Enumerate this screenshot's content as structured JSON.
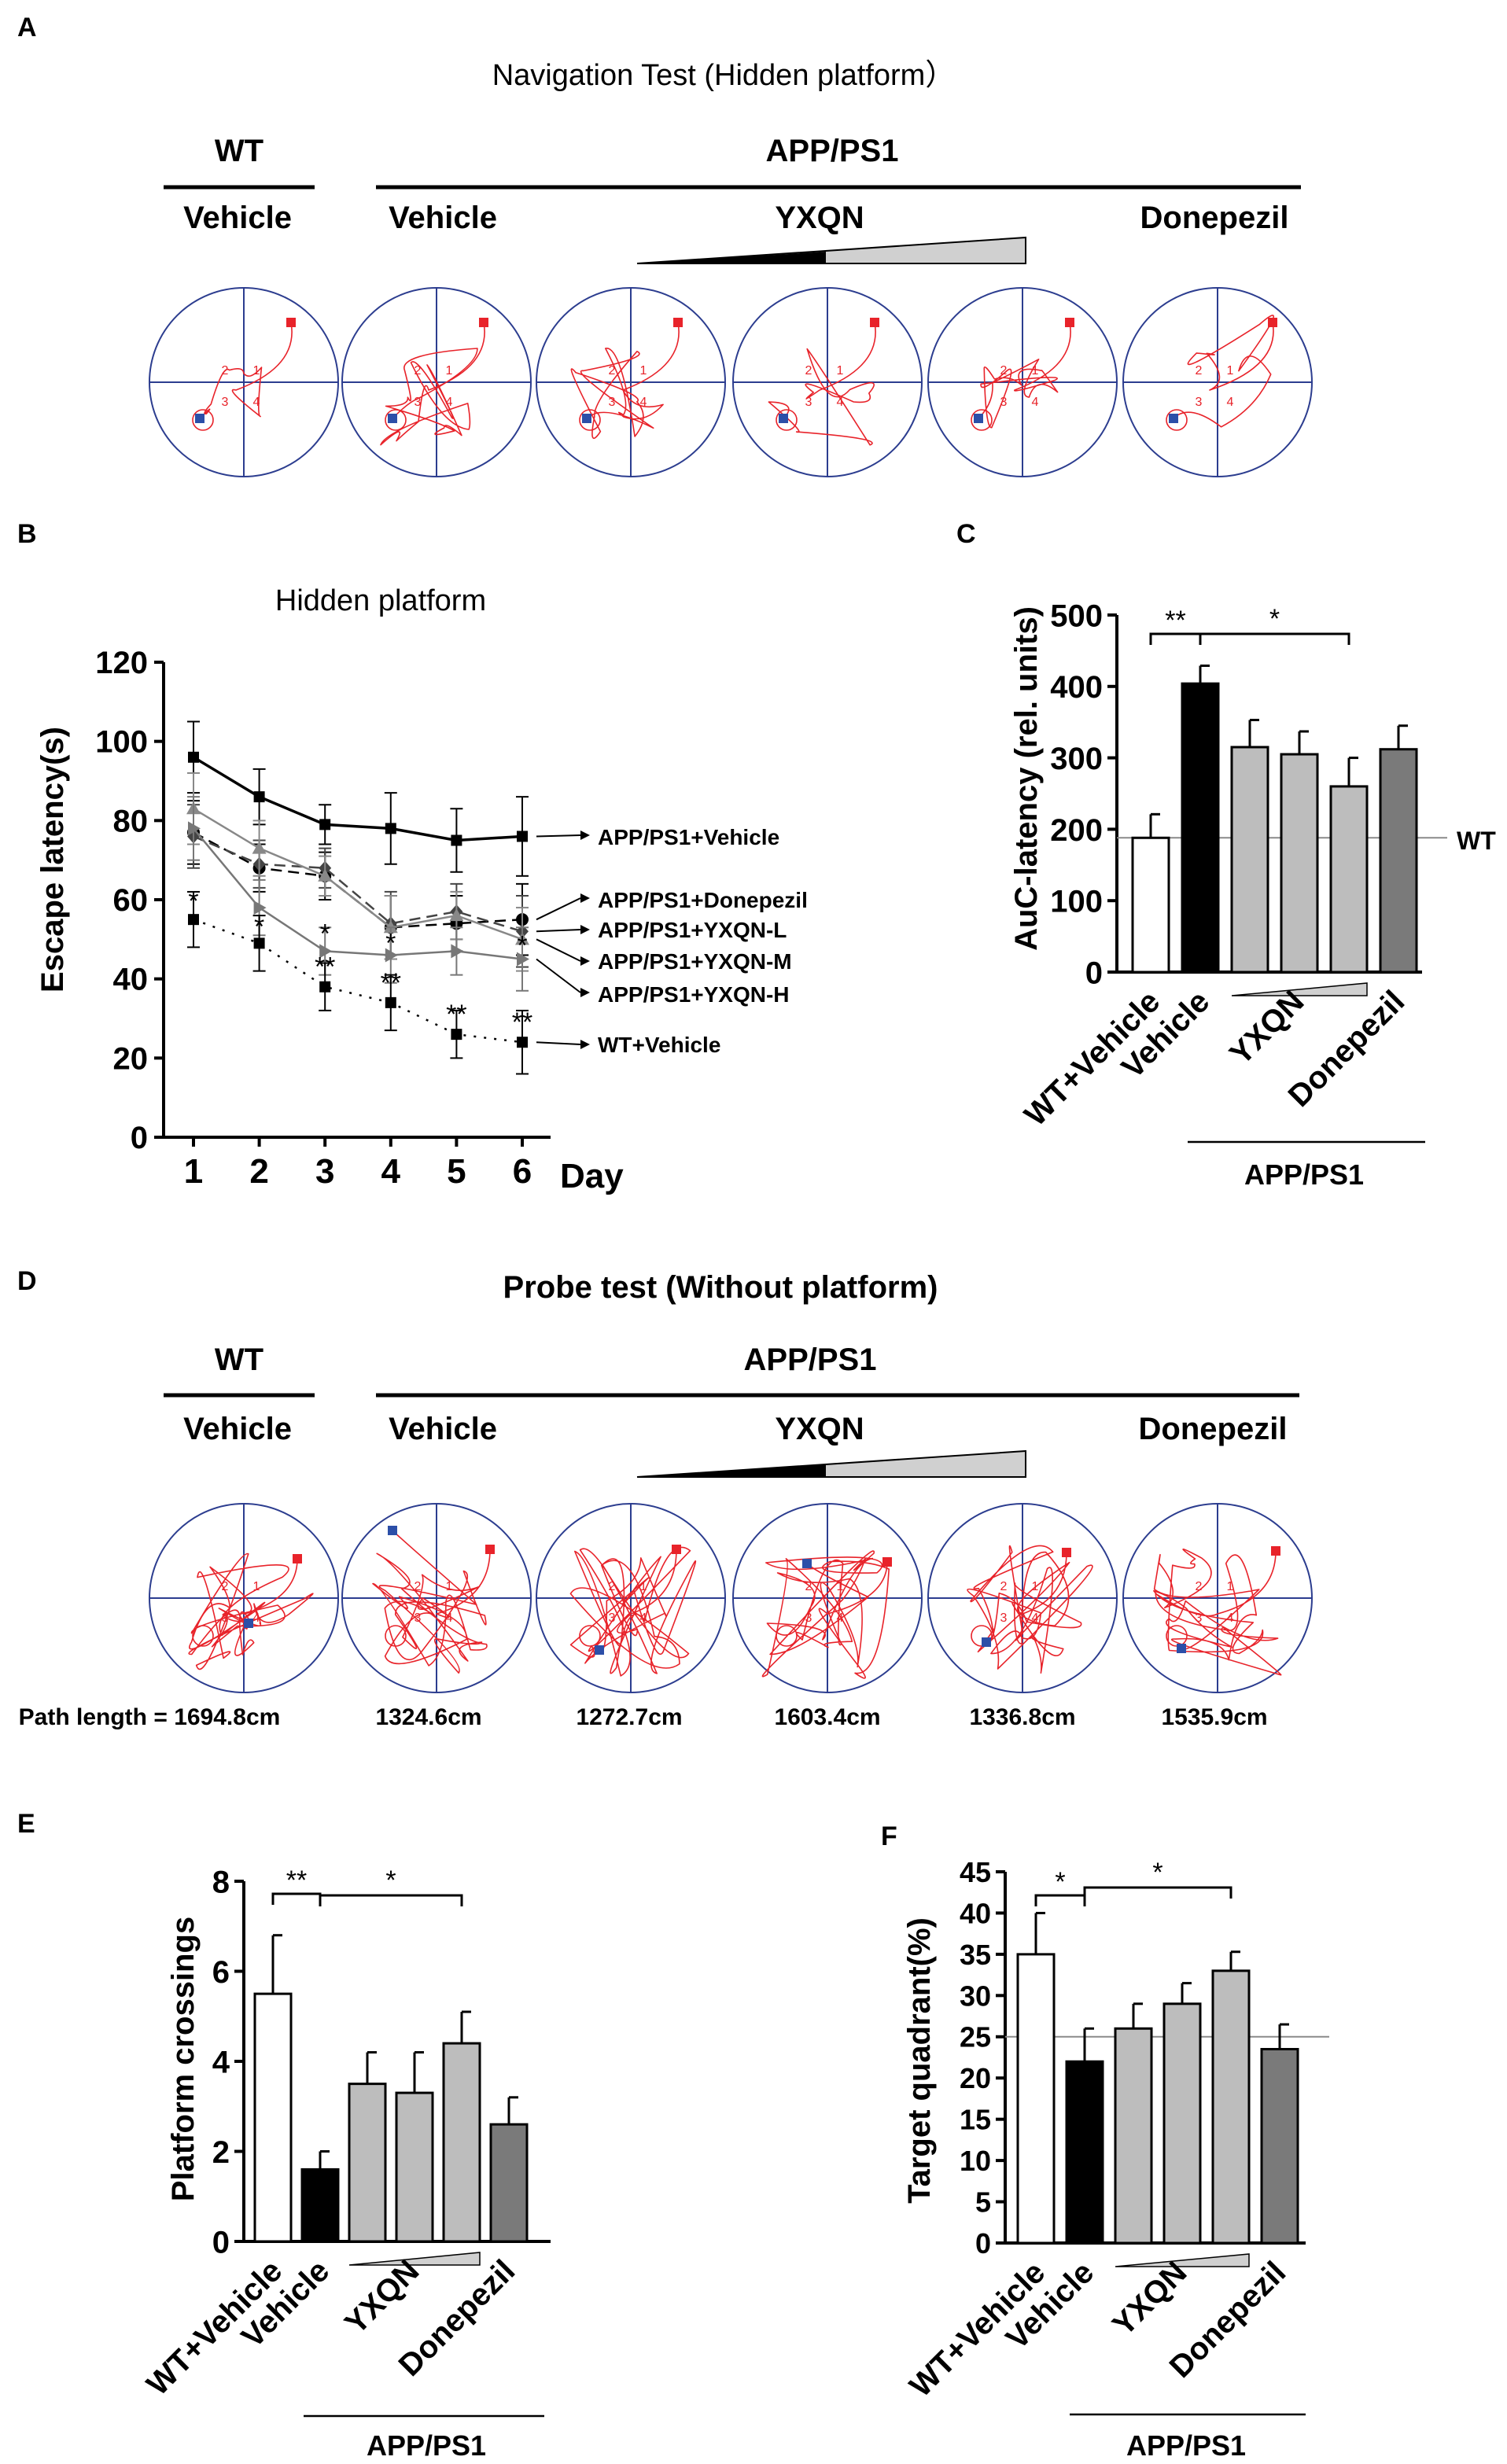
{
  "panel_letters": {
    "A": "A",
    "B": "B",
    "C": "C",
    "D": "D",
    "E": "E",
    "F": "F"
  },
  "groups": {
    "wt": "WT",
    "app": "APP/PS1",
    "vehicle": "Vehicle",
    "yxqn": "YXQN",
    "donepezil": "Donepezil"
  },
  "panel_A": {
    "title": "Navigation Test (Hidden platform）",
    "quadrant_labels": [
      "1",
      "2",
      "3",
      "4"
    ]
  },
  "panel_D": {
    "title": "Probe test  (Without platform)",
    "path_lengths": [
      "Path length = 1694.8cm",
      "1324.6cm",
      "1272.7cm",
      "1603.4cm",
      "1336.8cm",
      "1535.9cm"
    ]
  },
  "colors": {
    "path": "#e8232a",
    "start": "#e8232a",
    "platform": "#2c4fa8",
    "circle": "#2c3d8f",
    "axis": "#000000"
  },
  "chart_data": [
    {
      "id": "B",
      "type": "line",
      "title": "Hidden platform",
      "xlabel": "Day",
      "ylabel": "Escape latency(s)",
      "ylim": [
        0,
        120
      ],
      "yticks": [
        "0",
        "20",
        "40",
        "60",
        "80",
        "100",
        "120"
      ],
      "x": [
        "1",
        "2",
        "3",
        "4",
        "5",
        "6"
      ],
      "series": [
        {
          "name": "APP/PS1+Vehicle",
          "values": [
            96,
            86,
            79,
            78,
            75,
            76
          ],
          "errors": [
            9,
            7,
            5,
            9,
            8,
            10
          ],
          "marker": "square",
          "dash": "solid",
          "color": "#000000"
        },
        {
          "name": "APP/PS1+Donepezil",
          "values": [
            77,
            68,
            66,
            53,
            54,
            55
          ],
          "errors": [
            8,
            6,
            6,
            8,
            7,
            9
          ],
          "marker": "circle",
          "dash": "dashed",
          "color": "#000000"
        },
        {
          "name": "APP/PS1+YXQN-L",
          "values": [
            76,
            69,
            68,
            54,
            57,
            52
          ],
          "errors": [
            8,
            6,
            5,
            8,
            7,
            9
          ],
          "marker": "diamond",
          "dash": "dashed",
          "color": "#444444"
        },
        {
          "name": "APP/PS1+YXQN-M",
          "values": [
            83,
            73,
            66,
            53,
            56,
            50
          ],
          "errors": [
            9,
            7,
            5,
            8,
            6,
            8
          ],
          "marker": "triangle",
          "dash": "solid",
          "color": "#888888"
        },
        {
          "name": "APP/PS1+YXQN-H",
          "values": [
            78,
            58,
            47,
            46,
            47,
            45
          ],
          "errors": [
            8,
            7,
            6,
            7,
            6,
            8
          ],
          "marker": "triangle-right",
          "dash": "solid",
          "color": "#777777"
        },
        {
          "name": "WT+Vehicle",
          "values": [
            55,
            49,
            38,
            34,
            26,
            24
          ],
          "errors": [
            7,
            7,
            6,
            7,
            6,
            8
          ],
          "marker": "square",
          "dash": "dotted",
          "color": "#000000"
        }
      ],
      "annotations": [
        {
          "x": "1",
          "text": "*"
        },
        {
          "x": "2",
          "text": "*"
        },
        {
          "x": "3",
          "text": "*"
        },
        {
          "x": "3",
          "text": "**"
        },
        {
          "x": "4",
          "text": "*"
        },
        {
          "x": "4",
          "text": "**"
        },
        {
          "x": "5",
          "text": "**"
        },
        {
          "x": "6",
          "text": "*"
        },
        {
          "x": "6",
          "text": "**"
        }
      ]
    },
    {
      "id": "C",
      "type": "bar",
      "title": "",
      "ylabel": "AuC-latency (rel. units)",
      "ylim": [
        0,
        500
      ],
      "yticks": [
        "0",
        "100",
        "200",
        "300",
        "400",
        "500"
      ],
      "categories": [
        "WT+Vehicle",
        "Vehicle",
        "YXQN-L",
        "YXQN-M",
        "YXQN-H",
        "Donepezil"
      ],
      "tick_labels": [
        "WT+Vehicle",
        "Vehicle",
        "YXQN",
        "Donepezil"
      ],
      "group_label": "APP/PS1",
      "values": [
        188,
        404,
        315,
        305,
        260,
        312
      ],
      "errors": [
        33,
        25,
        38,
        32,
        40,
        33
      ],
      "colors": [
        "#ffffff",
        "#000000",
        "#bdbdbd",
        "#bdbdbd",
        "#bdbdbd",
        "#7a7a7a"
      ],
      "reference_line": {
        "value": 188,
        "label": "WT"
      },
      "significance": [
        {
          "from": "WT+Vehicle",
          "to": "Vehicle",
          "text": "**"
        },
        {
          "from": "Vehicle",
          "to": "YXQN-H",
          "text": "*"
        }
      ]
    },
    {
      "id": "E",
      "type": "bar",
      "title": "",
      "ylabel": "Platform crossings",
      "ylim": [
        0,
        8
      ],
      "yticks": [
        "0",
        "2",
        "4",
        "6",
        "8"
      ],
      "categories": [
        "WT+Vehicle",
        "Vehicle",
        "YXQN-L",
        "YXQN-M",
        "YXQN-H",
        "Donepezil"
      ],
      "tick_labels": [
        "WT+Vehicle",
        "Vehicle",
        "YXQN",
        "Donepezil"
      ],
      "group_label": "APP/PS1",
      "values": [
        5.5,
        1.6,
        3.5,
        3.3,
        4.4,
        2.6
      ],
      "errors": [
        1.3,
        0.4,
        0.7,
        0.9,
        0.7,
        0.6
      ],
      "colors": [
        "#ffffff",
        "#000000",
        "#bdbdbd",
        "#bdbdbd",
        "#bdbdbd",
        "#7a7a7a"
      ],
      "significance": [
        {
          "from": "WT+Vehicle",
          "to": "Vehicle",
          "text": "**"
        },
        {
          "from": "Vehicle",
          "to": "YXQN-H",
          "text": "*"
        }
      ]
    },
    {
      "id": "F",
      "type": "bar",
      "title": "",
      "ylabel": "Target quadrant(%)",
      "ylim": [
        0,
        45
      ],
      "yticks": [
        "0",
        "5",
        "10",
        "15",
        "20",
        "25",
        "30",
        "35",
        "40",
        "45"
      ],
      "categories": [
        "WT+Vehicle",
        "Vehicle",
        "YXQN-L",
        "YXQN-M",
        "YXQN-H",
        "Donepezil"
      ],
      "tick_labels": [
        "WT+Vehicle",
        "Vehicle",
        "YXQN",
        "Donepezil"
      ],
      "group_label": "APP/PS1",
      "values": [
        35,
        22,
        26,
        29,
        33,
        23.5
      ],
      "errors": [
        5,
        4,
        3,
        2.5,
        2.3,
        3
      ],
      "colors": [
        "#ffffff",
        "#000000",
        "#bdbdbd",
        "#bdbdbd",
        "#bdbdbd",
        "#7a7a7a"
      ],
      "reference_line": {
        "value": 25,
        "label": ""
      },
      "significance": [
        {
          "from": "WT+Vehicle",
          "to": "Vehicle",
          "text": "*"
        },
        {
          "from": "Vehicle",
          "to": "YXQN-H",
          "text": "*"
        }
      ]
    }
  ]
}
